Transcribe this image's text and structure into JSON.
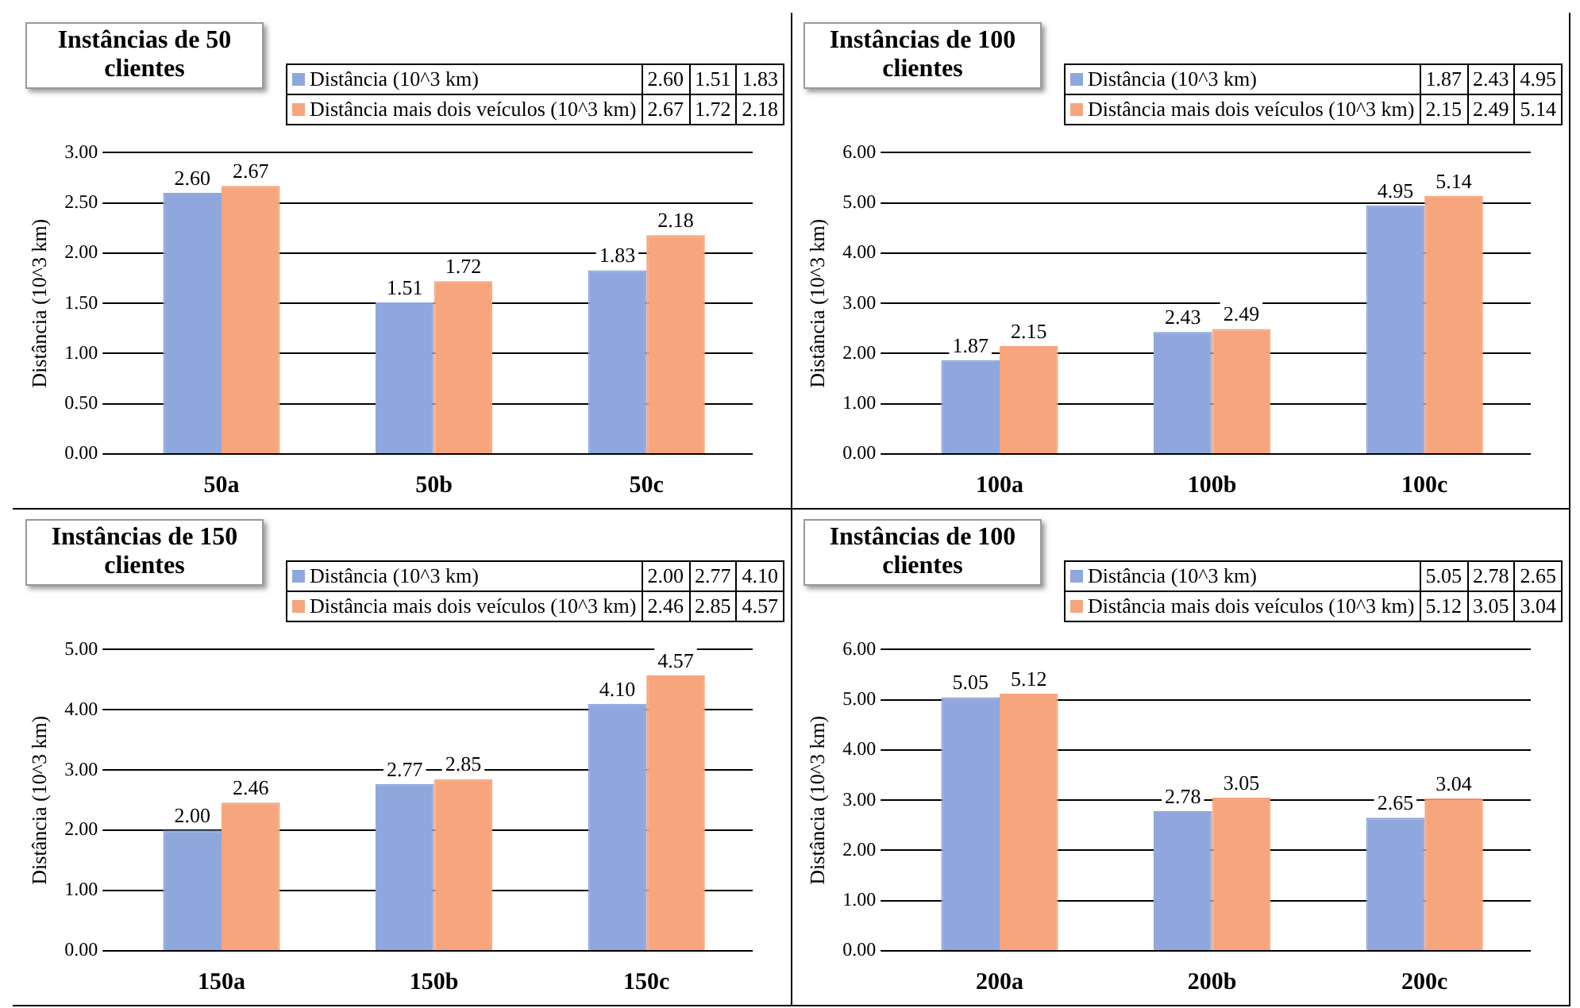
{
  "chart_data": [
    {
      "type": "bar",
      "title": "Instâncias de 50 clientes",
      "ylabel": "Distância (10^3 km)",
      "categories": [
        "50a",
        "50b",
        "50c"
      ],
      "series": [
        {
          "name": "Distância (10^3 km)",
          "color": "#8fa7dc",
          "values": [
            2.6,
            1.51,
            1.83
          ],
          "value_labels": [
            "2.60",
            "1.51",
            "1.83"
          ]
        },
        {
          "name": "Distância mais dois veículos (10^3 km)",
          "color": "#f7a57c",
          "values": [
            2.67,
            1.72,
            2.18
          ],
          "value_labels": [
            "2.67",
            "1.72",
            "2.18"
          ]
        }
      ],
      "ylim": [
        0,
        3
      ],
      "yticks": [
        {
          "value": 0,
          "label": "0.00"
        },
        {
          "value": 0.5,
          "label": "0.50"
        },
        {
          "value": 1,
          "label": "1.00"
        },
        {
          "value": 1.5,
          "label": "1.50"
        },
        {
          "value": 2,
          "label": "2.00"
        },
        {
          "value": 2.5,
          "label": "2.50"
        },
        {
          "value": 3,
          "label": "3.00"
        }
      ],
      "grid": "y",
      "legend": "top right"
    },
    {
      "type": "bar",
      "title": "Instâncias de 100 clientes",
      "ylabel": "Distância (10^3 km)",
      "categories": [
        "100a",
        "100b",
        "100c"
      ],
      "series": [
        {
          "name": "Distância (10^3 km)",
          "color": "#8fa7dc",
          "values": [
            1.87,
            2.43,
            4.95
          ],
          "value_labels": [
            "1.87",
            "2.43",
            "4.95"
          ]
        },
        {
          "name": "Distância mais dois veículos (10^3 km)",
          "color": "#f7a57c",
          "values": [
            2.15,
            2.49,
            5.14
          ],
          "value_labels": [
            "2.15",
            "2.49",
            "5.14"
          ]
        }
      ],
      "ylim": [
        0,
        6
      ],
      "yticks": [
        {
          "value": 0,
          "label": "0.00"
        },
        {
          "value": 1,
          "label": "1.00"
        },
        {
          "value": 2,
          "label": "2.00"
        },
        {
          "value": 3,
          "label": "3.00"
        },
        {
          "value": 4,
          "label": "4.00"
        },
        {
          "value": 5,
          "label": "5.00"
        },
        {
          "value": 6,
          "label": "6.00"
        }
      ],
      "grid": "y",
      "legend": "top right"
    },
    {
      "type": "bar",
      "title": "Instâncias de 150 clientes",
      "ylabel": "Distância (10^3 km)",
      "categories": [
        "150a",
        "150b",
        "150c"
      ],
      "series": [
        {
          "name": "Distância (10^3 km)",
          "color": "#8fa7dc",
          "values": [
            2.0,
            2.77,
            4.1
          ],
          "value_labels": [
            "2.00",
            "2.77",
            "4.10"
          ]
        },
        {
          "name": "Distância mais dois veículos (10^3 km)",
          "color": "#f7a57c",
          "values": [
            2.46,
            2.85,
            4.57
          ],
          "value_labels": [
            "2.46",
            "2.85",
            "4.57"
          ]
        }
      ],
      "ylim": [
        0,
        5
      ],
      "yticks": [
        {
          "value": 0,
          "label": "0.00"
        },
        {
          "value": 1,
          "label": "1.00"
        },
        {
          "value": 2,
          "label": "2.00"
        },
        {
          "value": 3,
          "label": "3.00"
        },
        {
          "value": 4,
          "label": "4.00"
        },
        {
          "value": 5,
          "label": "5.00"
        }
      ],
      "grid": "y",
      "legend": "top right"
    },
    {
      "type": "bar",
      "title": "Instâncias de 100 clientes",
      "ylabel": "Distância (10^3 km)",
      "categories": [
        "200a",
        "200b",
        "200c"
      ],
      "series": [
        {
          "name": "Distância (10^3 km)",
          "color": "#8fa7dc",
          "values": [
            5.05,
            2.78,
            2.65
          ],
          "value_labels": [
            "5.05",
            "2.78",
            "2.65"
          ]
        },
        {
          "name": "Distância mais dois veículos (10^3 km)",
          "color": "#f7a57c",
          "values": [
            5.12,
            3.05,
            3.04
          ],
          "value_labels": [
            "5.12",
            "3.05",
            "3.04"
          ]
        }
      ],
      "ylim": [
        0,
        6
      ],
      "yticks": [
        {
          "value": 0,
          "label": "0.00"
        },
        {
          "value": 1,
          "label": "1.00"
        },
        {
          "value": 2,
          "label": "2.00"
        },
        {
          "value": 3,
          "label": "3.00"
        },
        {
          "value": 4,
          "label": "4.00"
        },
        {
          "value": 5,
          "label": "5.00"
        },
        {
          "value": 6,
          "label": "6.00"
        }
      ],
      "grid": "y",
      "legend": "top right"
    }
  ]
}
